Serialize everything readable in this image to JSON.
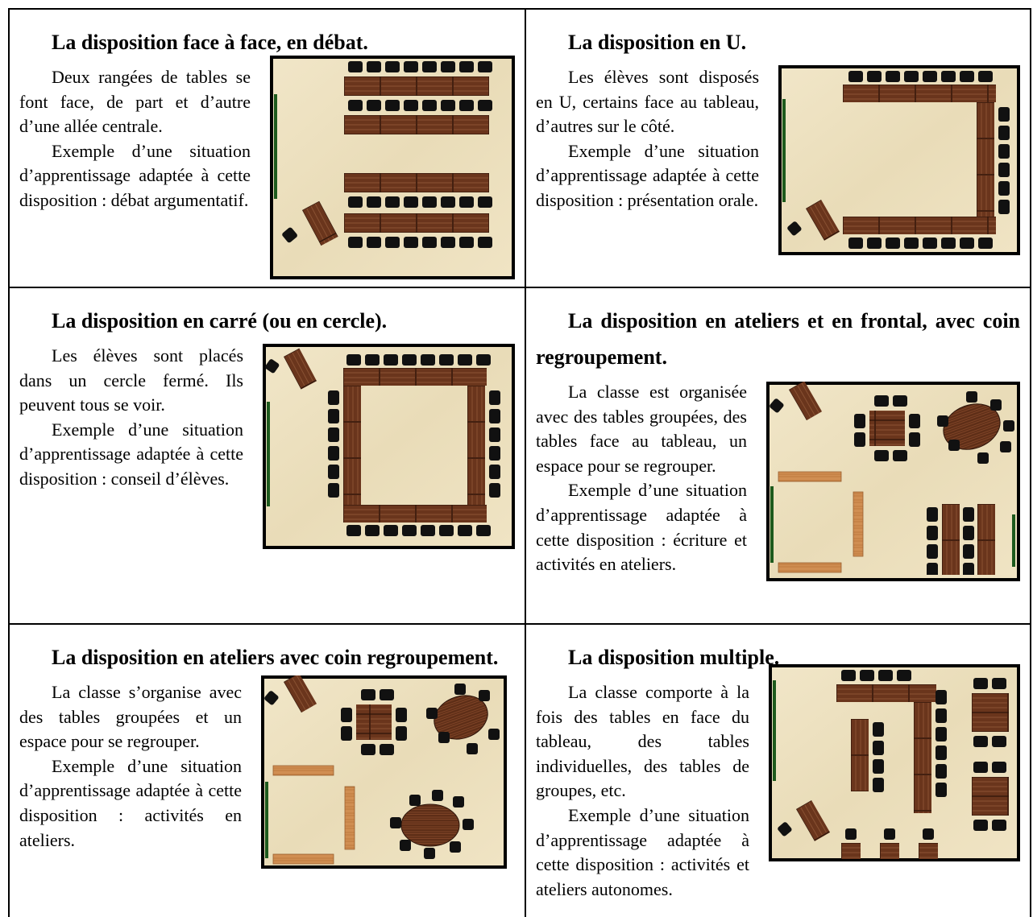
{
  "cells": [
    {
      "title": "La disposition face à face, en débat.",
      "paragraphs": [
        "Deux rangées de tables se font face, de part et d’autre d’une allée centrale.",
        "Exemple d’une situation d’apprentissage adaptée à cette disposition : débat argumentatif."
      ]
    },
    {
      "title": "La disposition en U.",
      "paragraphs": [
        "Les élèves sont disposés en U, certains face au tableau, d’autres sur le côté.",
        "Exemple d’une situation d’apprentissage adaptée à cette disposition : présentation orale."
      ]
    },
    {
      "title": "La disposition en carré (ou en cercle).",
      "paragraphs": [
        "Les élèves sont placés dans un cercle fermé. Ils peuvent tous se voir.",
        "Exemple d’une situation d’apprentissage adaptée à cette disposition : conseil d’élèves."
      ]
    },
    {
      "title": "La disposition en ateliers et en frontal, avec coin regroupement.",
      "paragraphs": [
        "La classe est organisée avec des tables groupées, des tables face au tableau, un espace pour se regrouper.",
        "Exemple d’une situation d’apprentissage adaptée à cette disposition : écriture et activités en ateliers."
      ]
    },
    {
      "title": "La disposition en ateliers avec coin regroupement.",
      "paragraphs": [
        "La classe s’organise avec des tables groupées et un espace pour se regrouper.",
        "Exemple d’une situation d’apprentissage adaptée à cette disposition : activités en ateliers."
      ]
    },
    {
      "title": "La disposition multiple.",
      "paragraphs": [
        "La classe comporte à la fois des tables en face du tableau, des tables individuelles, des tables de groupes, etc.",
        "Exemple d’une situation d’apprentissage adaptée à cette disposition : activités et ateliers autonomes."
      ]
    }
  ]
}
